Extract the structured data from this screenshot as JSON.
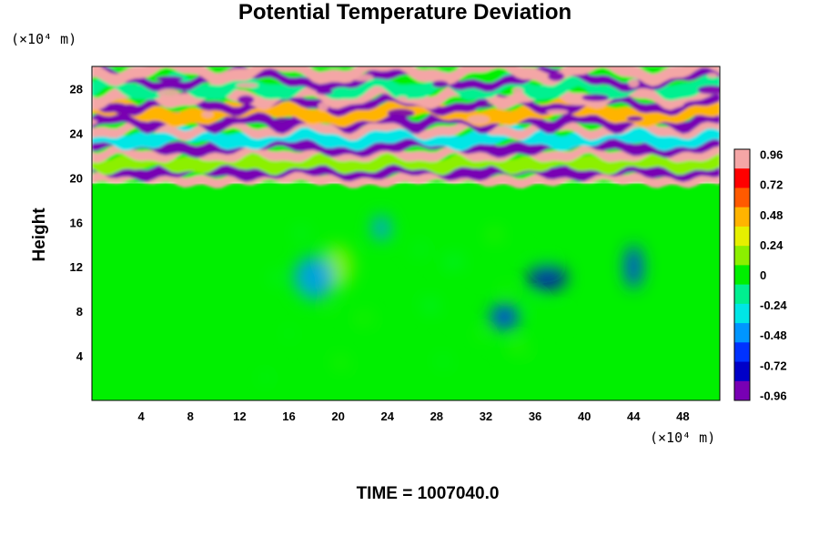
{
  "chart_data": {
    "type": "heatmap",
    "title": "Potential Temperature Deviation",
    "ylabel": "Height",
    "xlabel": "",
    "x_unit_label": "(×10⁴ m)",
    "y_unit_label": "(×10⁴ m)",
    "annotation": "TIME = 1007040.0",
    "xlim": [
      0,
      51
    ],
    "ylim": [
      0,
      30
    ],
    "x_ticks": [
      "4",
      "8",
      "12",
      "16",
      "20",
      "24",
      "28",
      "32",
      "36",
      "40",
      "44",
      "48"
    ],
    "y_ticks": [
      "4",
      "8",
      "12",
      "16",
      "20",
      "24",
      "28"
    ],
    "colorbar": {
      "range": [
        -1.0,
        1.0
      ],
      "tick_labels": [
        "0.96",
        "0.72",
        "0.48",
        "0.24",
        "0",
        "-0.24",
        "-0.48",
        "-0.72",
        "-0.96"
      ],
      "colors": [
        "#f4a6a6",
        "#ff0000",
        "#ff5a00",
        "#ffb400",
        "#e6f000",
        "#8cf000",
        "#00f000",
        "#00f090",
        "#00e6e6",
        "#0096ff",
        "#0032ff",
        "#0000c8",
        "#7800b4"
      ]
    },
    "field_summary": {
      "lower_layer_height_range": [
        0,
        19.5
      ],
      "lower_layer_value": 0.0,
      "upper_layer_height_range": [
        19.5,
        30
      ],
      "upper_layer_value_range": [
        -0.96,
        0.96
      ],
      "features": [
        {
          "x": 23.5,
          "y": 15.5,
          "value": -0.45
        },
        {
          "x": 20,
          "y": 12,
          "value": 0.2
        },
        {
          "x": 37,
          "y": 11,
          "value": -0.85
        },
        {
          "x": 44,
          "y": 12,
          "value": -0.7
        },
        {
          "x": 33.5,
          "y": 7.5,
          "value": -0.6
        },
        {
          "x": 18,
          "y": 11,
          "value": -0.5
        }
      ]
    }
  }
}
